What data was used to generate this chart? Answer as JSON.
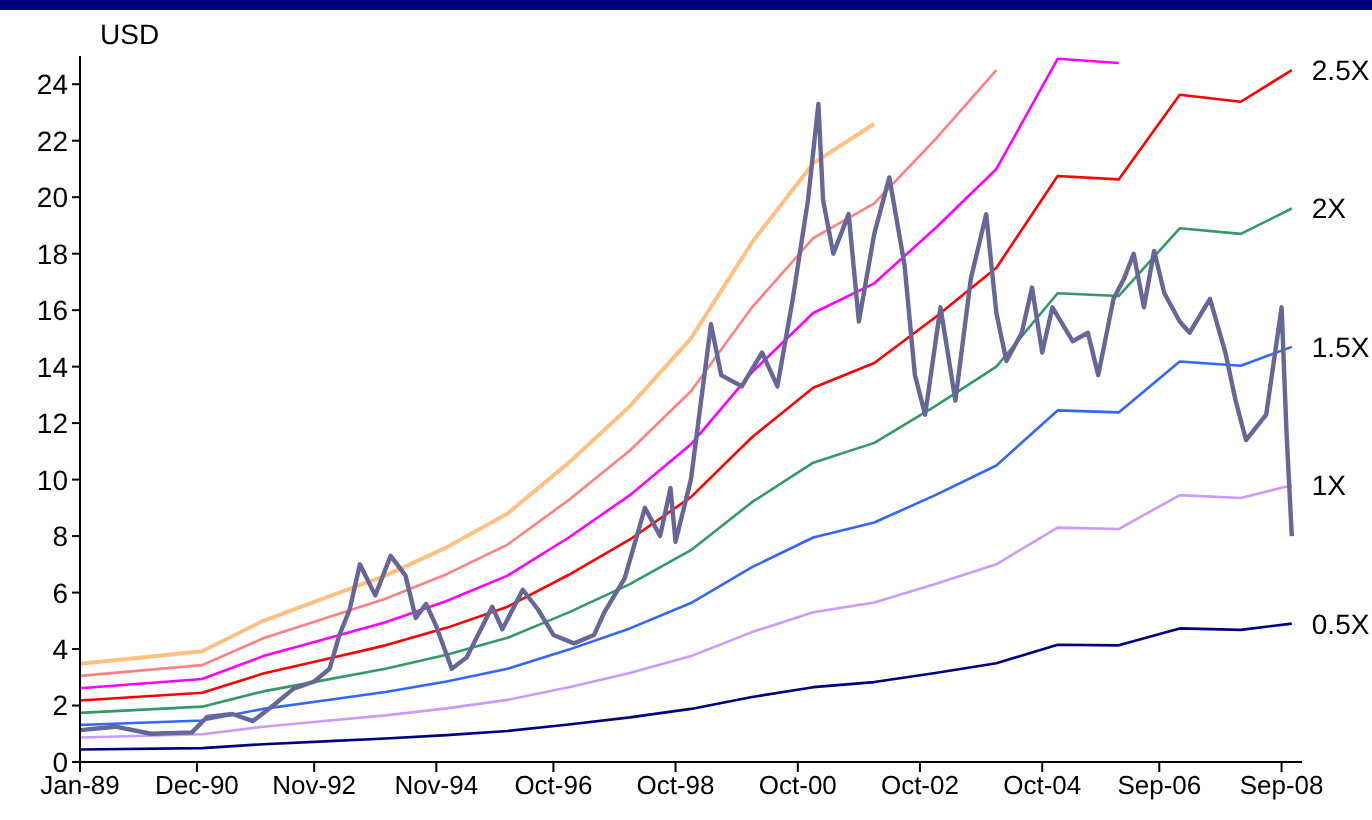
{
  "chart_data": {
    "type": "line",
    "ylabel": "USD",
    "x": [
      "1989-01",
      "1991-01",
      "1992-01",
      "1993-01",
      "1994-01",
      "1995-01",
      "1996-01",
      "1997-01",
      "1998-01",
      "1999-01",
      "2000-01",
      "2001-01",
      "2002-01",
      "2003-01",
      "2004-01",
      "2005-01",
      "2006-01",
      "2007-01",
      "2008-01",
      "2008-11"
    ],
    "xlim": [
      "1989-01",
      "2009-01"
    ],
    "xticks": [
      {
        "value": "1989-01",
        "label": "Jan-89"
      },
      {
        "value": "1990-12",
        "label": "Dec-90"
      },
      {
        "value": "1992-11",
        "label": "Nov-92"
      },
      {
        "value": "1994-11",
        "label": "Nov-94"
      },
      {
        "value": "1996-10",
        "label": "Oct-96"
      },
      {
        "value": "1998-10",
        "label": "Oct-98"
      },
      {
        "value": "2000-10",
        "label": "Oct-00"
      },
      {
        "value": "2002-10",
        "label": "Oct-02"
      },
      {
        "value": "2004-10",
        "label": "Oct-04"
      },
      {
        "value": "2006-09",
        "label": "Sep-06"
      },
      {
        "value": "2008-09",
        "label": "Sep-08"
      }
    ],
    "ylim": [
      0,
      25
    ],
    "yticks": [
      0,
      2,
      4,
      6,
      8,
      10,
      12,
      14,
      16,
      18,
      20,
      22,
      24
    ],
    "series": [
      {
        "color": "#ffc080",
        "values": [
          3.48,
          3.92,
          5,
          5.8,
          6.6,
          7.6,
          8.8,
          10.6,
          12.6,
          15,
          18.4,
          21.2,
          22.6,
          null,
          null,
          null,
          null,
          null,
          null,
          null
        ]
      },
      {
        "color": "#ff8080",
        "values": [
          3.05,
          3.43,
          4.38,
          5.08,
          5.78,
          6.65,
          7.7,
          9.28,
          11.03,
          13.13,
          16.1,
          18.55,
          19.78,
          22.05,
          24.5,
          null,
          null,
          null,
          null,
          null
        ]
      },
      {
        "color": "#ff00ff",
        "values": [
          2.61,
          2.94,
          3.75,
          4.35,
          4.95,
          5.7,
          6.6,
          7.95,
          9.45,
          11.25,
          13.8,
          15.9,
          16.95,
          18.9,
          21,
          24.9,
          24.75,
          null,
          null,
          null
        ]
      },
      {
        "name": "2.5X",
        "color": "#ff0000",
        "values": [
          2.18,
          2.45,
          3.13,
          3.63,
          4.13,
          4.75,
          5.5,
          6.63,
          7.88,
          9.38,
          11.5,
          13.25,
          14.13,
          15.75,
          17.5,
          20.75,
          20.63,
          23.63,
          23.38,
          24.5
        ]
      },
      {
        "name": "2X",
        "color": "#339966",
        "values": [
          1.74,
          1.96,
          2.5,
          2.9,
          3.3,
          3.8,
          4.4,
          5.3,
          6.3,
          7.5,
          9.2,
          10.6,
          11.3,
          12.6,
          14,
          16.6,
          16.5,
          18.9,
          18.7,
          19.6
        ]
      },
      {
        "name": "1.5X",
        "color": "#3366ff",
        "values": [
          1.31,
          1.47,
          1.88,
          2.18,
          2.48,
          2.85,
          3.3,
          3.98,
          4.73,
          5.63,
          6.9,
          7.95,
          8.48,
          9.45,
          10.5,
          12.45,
          12.38,
          14.18,
          14.03,
          14.7
        ]
      },
      {
        "name": "1X",
        "color": "#cc99ff",
        "values": [
          0.87,
          0.98,
          1.25,
          1.45,
          1.65,
          1.9,
          2.2,
          2.65,
          3.15,
          3.75,
          4.6,
          5.3,
          5.65,
          6.3,
          7,
          8.3,
          8.25,
          9.45,
          9.35,
          9.8
        ]
      },
      {
        "name": "0.5X",
        "color": "#000080",
        "values": [
          0.44,
          0.49,
          0.63,
          0.73,
          0.83,
          0.95,
          1.1,
          1.33,
          1.58,
          1.88,
          2.3,
          2.65,
          2.83,
          3.15,
          3.5,
          4.15,
          4.13,
          4.73,
          4.68,
          4.9
        ]
      },
      {
        "color": "#666699",
        "x": [
          "1989-01",
          "1989-08",
          "1990-03",
          "1990-11",
          "1991-02",
          "1991-07",
          "1991-11",
          "1992-03",
          "1992-07",
          "1992-11",
          "1993-02",
          "1993-04",
          "1993-06",
          "1993-08",
          "1993-11",
          "1994-02",
          "1994-05",
          "1994-07",
          "1994-09",
          "1994-11",
          "1995-02",
          "1995-05",
          "1995-10",
          "1995-12",
          "1996-04",
          "1996-07",
          "1996-10",
          "1997-02",
          "1997-06",
          "1997-08",
          "1997-12",
          "1998-04",
          "1998-07",
          "1998-09",
          "1998-10",
          "1999-01",
          "1999-05",
          "1999-07",
          "1999-11",
          "2000-03",
          "2000-06",
          "2000-09",
          "2000-12",
          "2001-02",
          "2001-03",
          "2001-05",
          "2001-08",
          "2001-10",
          "2002-01",
          "2002-04",
          "2002-07",
          "2002-09",
          "2002-11",
          "2003-02",
          "2003-05",
          "2003-08",
          "2003-11",
          "2004-01",
          "2004-03",
          "2004-06",
          "2004-08",
          "2004-10",
          "2004-12",
          "2005-04",
          "2005-07",
          "2005-09",
          "2005-12",
          "2006-02",
          "2006-04",
          "2006-06",
          "2006-08",
          "2006-10",
          "2007-01",
          "2007-03",
          "2007-07",
          "2007-10",
          "2007-12",
          "2008-02",
          "2008-06",
          "2008-09",
          "2008-10",
          "2008-11"
        ],
        "values": [
          1.13,
          1.25,
          1,
          1.05,
          1.6,
          1.7,
          1.45,
          2,
          2.6,
          2.85,
          3.3,
          4.5,
          5.4,
          7,
          5.9,
          7.3,
          6.6,
          5.1,
          5.6,
          4.8,
          3.3,
          3.7,
          5.5,
          4.7,
          6.1,
          5.4,
          4.5,
          4.2,
          4.5,
          5.3,
          6.5,
          9,
          8,
          9.7,
          7.8,
          10,
          15.5,
          13.7,
          13.3,
          14.5,
          13.3,
          16.4,
          19.9,
          23.3,
          19.9,
          18,
          19.4,
          15.6,
          18.7,
          20.7,
          17.6,
          13.7,
          12.3,
          16.1,
          12.8,
          17.1,
          19.4,
          15.9,
          14.2,
          15.2,
          16.8,
          14.5,
          16.1,
          14.9,
          15.2,
          13.7,
          16.4,
          17.1,
          18,
          16.1,
          18.1,
          16.6,
          15.6,
          15.2,
          16.4,
          14.5,
          12.8,
          11.4,
          12.3,
          16.1,
          11.6,
          8
        ]
      }
    ]
  }
}
